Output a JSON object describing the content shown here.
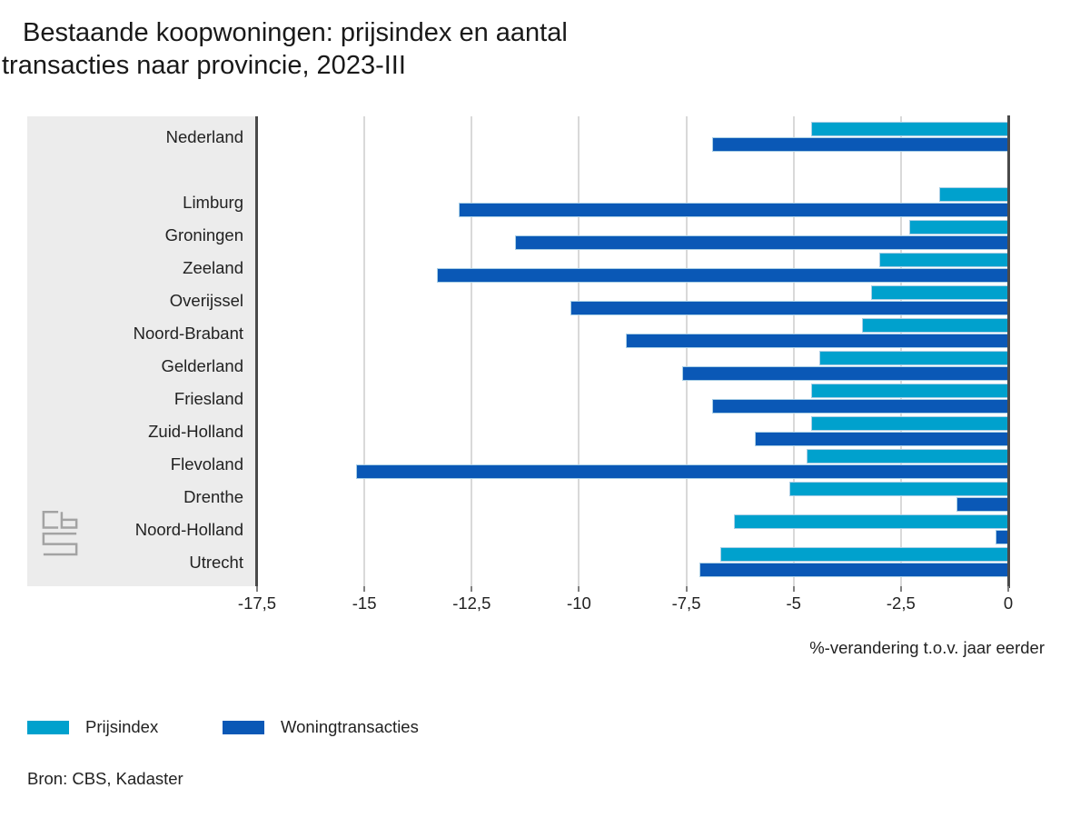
{
  "title": {
    "line1": "Bestaande koopwoningen: prijsindex en aantal",
    "line2": "transacties naar provincie, 2023-III"
  },
  "chart_data": {
    "type": "bar",
    "orientation": "horizontal",
    "title": "Bestaande koopwoningen: prijsindex en aantal transacties naar provincie, 2023-III",
    "xlabel": "%-verandering t.o.v. jaar eerder",
    "xlim": [
      -17.5,
      0
    ],
    "xticks": [
      -17.5,
      -15,
      -12.5,
      -10,
      -7.5,
      -5,
      -2.5,
      0
    ],
    "xtick_labels": [
      "-17,5",
      "-15",
      "-12,5",
      "-10",
      "-7,5",
      "-5",
      "-2,5",
      "0"
    ],
    "grid": true,
    "legend_position": "bottom-left",
    "categories": [
      "Nederland",
      "Limburg",
      "Groningen",
      "Zeeland",
      "Overijssel",
      "Noord-Brabant",
      "Gelderland",
      "Friesland",
      "Zuid-Holland",
      "Flevoland",
      "Drenthe",
      "Noord-Holland",
      "Utrecht"
    ],
    "series": [
      {
        "name": "Prijsindex",
        "color": "#00a1cd",
        "values": [
          -4.6,
          -1.6,
          -2.3,
          -3.0,
          -3.2,
          -3.4,
          -4.4,
          -4.6,
          -4.6,
          -4.7,
          -5.1,
          -6.4,
          -6.7
        ]
      },
      {
        "name": "Woningtransacties",
        "color": "#0a58b6",
        "values": [
          -6.9,
          -12.8,
          -11.5,
          -13.3,
          -10.2,
          -8.9,
          -7.6,
          -6.9,
          -5.9,
          -15.2,
          -1.2,
          -0.3,
          -7.2
        ]
      }
    ]
  },
  "source": "Bron: CBS, Kadaster",
  "logo": "cbs"
}
